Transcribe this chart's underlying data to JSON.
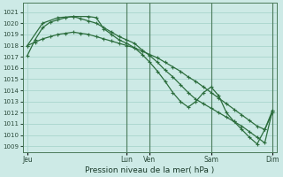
{
  "title": "Pression niveau de la mer( hPa )",
  "bg_color": "#cdeae6",
  "grid_color": "#a8d5cc",
  "line_color": "#2d6e3e",
  "vline_color": "#4a7a5a",
  "ylim": [
    1008.5,
    1021.8
  ],
  "yticks": [
    1009,
    1010,
    1011,
    1012,
    1013,
    1014,
    1015,
    1016,
    1017,
    1018,
    1019,
    1020,
    1021
  ],
  "xlim": [
    -0.3,
    16.3
  ],
  "xtick_positions": [
    0,
    6.5,
    8.0,
    12.0,
    16.0
  ],
  "xtick_labels": [
    "Jeu",
    "Lun",
    "Ven",
    "Sam",
    "Dim"
  ],
  "vlines": [
    6.5,
    8.0,
    12.0,
    16.0
  ],
  "line1_x": [
    0,
    0.5,
    1,
    1.5,
    2,
    2.5,
    3,
    3.5,
    4,
    4.5,
    5,
    5.5,
    6,
    6.5,
    7,
    7.5,
    8,
    8.5,
    9,
    9.5,
    10,
    10.5,
    11,
    11.5,
    12,
    12.5,
    13,
    13.5,
    14,
    14.5,
    15,
    15.5,
    16
  ],
  "line1_y": [
    1018.0,
    1018.3,
    1018.6,
    1018.8,
    1019.0,
    1019.1,
    1019.2,
    1019.1,
    1019.0,
    1018.8,
    1018.6,
    1018.4,
    1018.2,
    1018.0,
    1017.8,
    1017.5,
    1017.2,
    1016.9,
    1016.5,
    1016.1,
    1015.7,
    1015.2,
    1014.8,
    1014.3,
    1013.8,
    1013.3,
    1012.8,
    1012.3,
    1011.8,
    1011.3,
    1010.8,
    1010.5,
    1012.2
  ],
  "line2_x": [
    0,
    0.5,
    1,
    1.5,
    2,
    2.5,
    3,
    3.5,
    4,
    4.5,
    5,
    5.5,
    6,
    6.5,
    7,
    7.5,
    8,
    8.5,
    9,
    9.5,
    10,
    10.5,
    11,
    11.5,
    12,
    12.5,
    13,
    13.5,
    14,
    14.5,
    15,
    15.5,
    16
  ],
  "line2_y": [
    1017.1,
    1018.5,
    1019.6,
    1020.1,
    1020.3,
    1020.5,
    1020.6,
    1020.4,
    1020.2,
    1020.0,
    1019.6,
    1019.2,
    1018.8,
    1018.5,
    1018.2,
    1017.6,
    1017.1,
    1016.5,
    1015.8,
    1015.2,
    1014.5,
    1013.8,
    1013.2,
    1012.8,
    1012.4,
    1012.0,
    1011.6,
    1011.2,
    1010.8,
    1010.3,
    1009.8,
    1009.3,
    1012.2
  ],
  "line3_x": [
    0,
    1,
    2,
    3,
    4,
    4.5,
    5,
    5.5,
    6,
    6.5,
    7,
    7.5,
    8,
    8.5,
    9,
    9.5,
    10,
    10.5,
    11,
    11.5,
    12,
    12.5,
    13,
    13.5,
    14,
    14.5,
    15,
    15.5,
    16
  ],
  "line3_y": [
    1018.0,
    1020.0,
    1020.5,
    1020.6,
    1020.6,
    1020.5,
    1019.5,
    1019.0,
    1018.5,
    1018.2,
    1017.8,
    1017.2,
    1016.5,
    1015.7,
    1014.8,
    1013.8,
    1013.0,
    1012.5,
    1013.0,
    1013.8,
    1014.3,
    1013.5,
    1012.0,
    1011.2,
    1010.5,
    1009.8,
    1009.2,
    1010.5,
    1012.0
  ]
}
